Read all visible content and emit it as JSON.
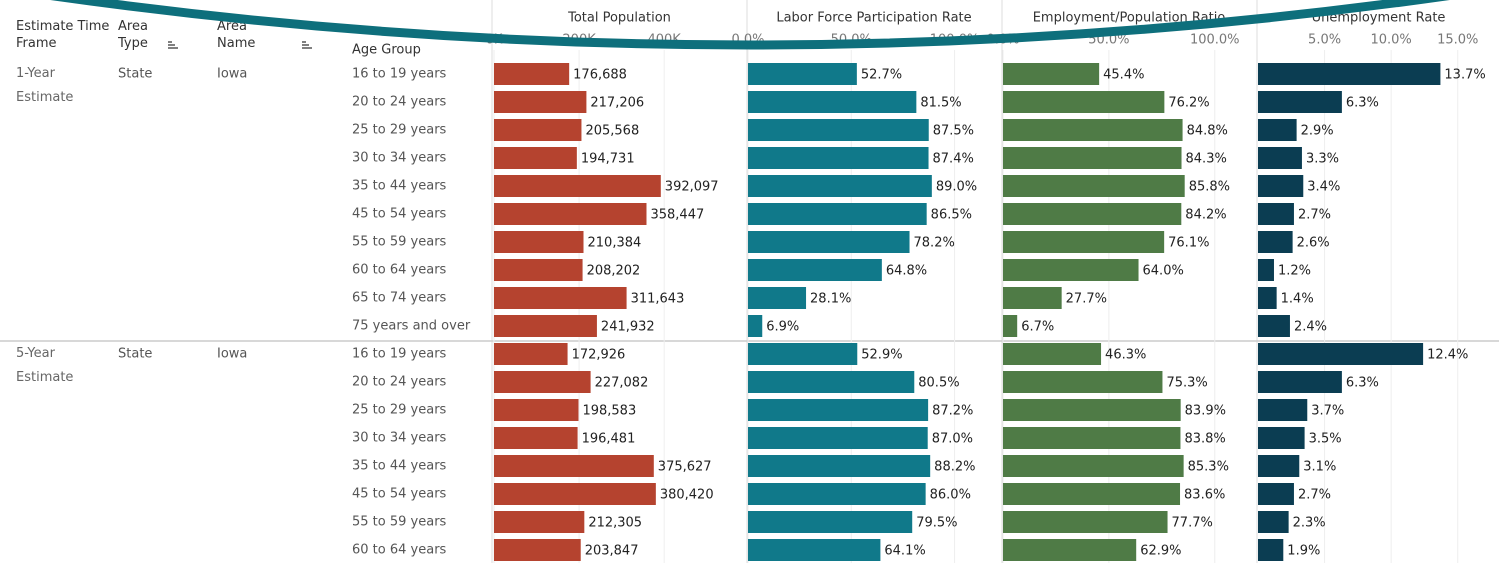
{
  "headers": {
    "time_frame": "Estimate Time Frame",
    "area_type": "Area Type",
    "area_name": "Area Name",
    "age_group": "Age Group"
  },
  "groups": [
    {
      "time_frame": "1-Year Estimate",
      "area_type": "State",
      "area_name": "Iowa",
      "age_groups": [
        "16 to 19 years",
        "20 to 24 years",
        "25 to 29 years",
        "30 to 34 years",
        "35 to 44 years",
        "45 to 54 years",
        "55 to 59 years",
        "60 to 64 years",
        "65 to 74 years",
        "75 years and over"
      ]
    },
    {
      "time_frame": "5-Year Estimate",
      "area_type": "State",
      "area_name": "Iowa",
      "age_groups": [
        "16 to 19 years",
        "20 to 24 years",
        "25 to 29 years",
        "30 to 34 years",
        "35 to 44 years",
        "45 to 54 years",
        "55 to 59 years",
        "60 to 64 years"
      ]
    }
  ],
  "chart_data": [
    {
      "type": "hbar",
      "title": "Total Population",
      "color": "#b5432f",
      "grid": true,
      "xlim": [
        0,
        590000
      ],
      "xticks": [
        {
          "value": 0,
          "label": "0K"
        },
        {
          "value": 200000,
          "label": "200K"
        },
        {
          "value": 400000,
          "label": "400K"
        }
      ],
      "values": [
        176688,
        217206,
        205568,
        194731,
        392097,
        358447,
        210384,
        208202,
        311643,
        241932,
        172926,
        227082,
        198583,
        196481,
        375627,
        380420,
        212305,
        203847
      ],
      "value_labels": [
        "176,688",
        "217,206",
        "205,568",
        "194,731",
        "392,097",
        "358,447",
        "210,384",
        "208,202",
        "311,643",
        "241,932",
        "172,926",
        "227,082",
        "198,583",
        "196,481",
        "375,627",
        "380,420",
        "212,305",
        "203,847"
      ]
    },
    {
      "type": "hbar",
      "title": "Labor Force Participation Rate",
      "color": "#10798a",
      "grid": true,
      "xlim": [
        0,
        122
      ],
      "xticks": [
        {
          "value": 0,
          "label": "0.0%"
        },
        {
          "value": 50,
          "label": "50.0%"
        },
        {
          "value": 100,
          "label": "100.0%"
        }
      ],
      "values": [
        52.7,
        81.5,
        87.5,
        87.4,
        89.0,
        86.5,
        78.2,
        64.8,
        28.1,
        6.9,
        52.9,
        80.5,
        87.2,
        87.0,
        88.2,
        86.0,
        79.5,
        64.1
      ],
      "value_labels": [
        "52.7%",
        "81.5%",
        "87.5%",
        "87.4%",
        "89.0%",
        "86.5%",
        "78.2%",
        "64.8%",
        "28.1%",
        "6.9%",
        "52.9%",
        "80.5%",
        "87.2%",
        "87.0%",
        "88.2%",
        "86.0%",
        "79.5%",
        "64.1%"
      ]
    },
    {
      "type": "hbar",
      "title": "Employment/Population Ratio",
      "color": "#4f7b46",
      "grid": true,
      "xlim": [
        0,
        119
      ],
      "xticks": [
        {
          "value": 0,
          "label": "0.0%"
        },
        {
          "value": 50,
          "label": "50.0%"
        },
        {
          "value": 100,
          "label": "100.0%"
        }
      ],
      "values": [
        45.4,
        76.2,
        84.8,
        84.3,
        85.8,
        84.2,
        76.1,
        64.0,
        27.7,
        6.7,
        46.3,
        75.3,
        83.9,
        83.8,
        85.3,
        83.6,
        77.7,
        62.9
      ],
      "value_labels": [
        "45.4%",
        "76.2%",
        "84.8%",
        "84.3%",
        "85.8%",
        "84.2%",
        "76.1%",
        "64.0%",
        "27.7%",
        "6.7%",
        "46.3%",
        "75.3%",
        "83.9%",
        "83.8%",
        "85.3%",
        "83.6%",
        "77.7%",
        "62.9%"
      ]
    },
    {
      "type": "hbar",
      "title": "Unemployment Rate",
      "color": "#0b3d52",
      "grid": true,
      "xlim": [
        0,
        18.1
      ],
      "xticks": [
        {
          "value": 5,
          "label": "5.0%"
        },
        {
          "value": 10,
          "label": "10.0%"
        },
        {
          "value": 15,
          "label": "15.0%"
        }
      ],
      "values": [
        13.7,
        6.3,
        2.9,
        3.3,
        3.4,
        2.7,
        2.6,
        1.2,
        1.4,
        2.4,
        12.4,
        6.3,
        3.7,
        3.5,
        3.1,
        2.7,
        2.3,
        1.9
      ],
      "value_labels": [
        "13.7%",
        "6.3%",
        "2.9%",
        "3.3%",
        "3.4%",
        "2.7%",
        "2.6%",
        "1.2%",
        "1.4%",
        "2.4%",
        "12.4%",
        "6.3%",
        "3.7%",
        "3.5%",
        "3.1%",
        "2.7%",
        "2.3%",
        "1.9%"
      ]
    }
  ]
}
